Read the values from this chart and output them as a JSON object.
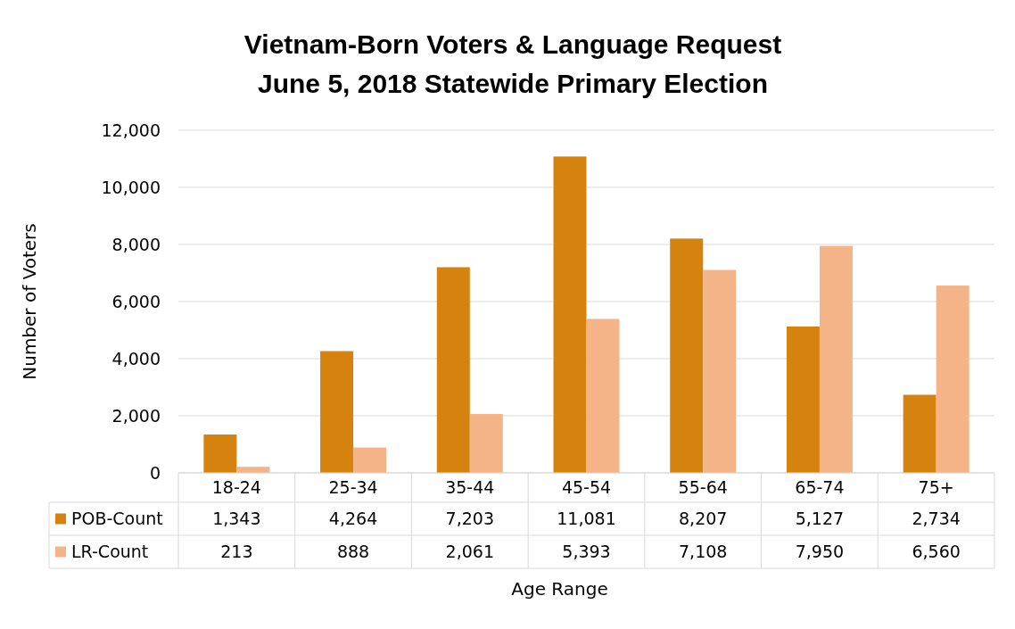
{
  "chart_data": {
    "type": "bar",
    "title": "Vietnam-Born Voters & Language Request\nJune 5, 2018 Statewide Primary Election",
    "xlabel": "Age Range",
    "ylabel": "Number of Voters",
    "categories": [
      "18-24",
      "25-34",
      "35-44",
      "45-54",
      "55-64",
      "65-74",
      "75+"
    ],
    "series": [
      {
        "name": "POB-Count",
        "color": "#d6820f",
        "values": [
          1343,
          4264,
          7203,
          11081,
          8207,
          5127,
          2734
        ],
        "value_labels": [
          "1,343",
          "4,264",
          "7,203",
          "11,081",
          "8,207",
          "5,127",
          "2,734"
        ]
      },
      {
        "name": "LR-Count",
        "color": "#f4b487",
        "values": [
          213,
          888,
          2061,
          5393,
          7108,
          7950,
          6560
        ],
        "value_labels": [
          "213",
          "888",
          "2,061",
          "5,393",
          "7,108",
          "7,950",
          "6,560"
        ]
      }
    ],
    "ylim": [
      0,
      12000
    ],
    "yticks": [
      {
        "value": 0,
        "label": "0"
      },
      {
        "value": 2000,
        "label": "2,000"
      },
      {
        "value": 4000,
        "label": "4,000"
      },
      {
        "value": 6000,
        "label": "6,000"
      },
      {
        "value": 8000,
        "label": "8,000"
      },
      {
        "value": 10000,
        "label": "10,000"
      },
      {
        "value": 12000,
        "label": "12,000"
      }
    ],
    "grid": "y",
    "legend": "bottom"
  }
}
